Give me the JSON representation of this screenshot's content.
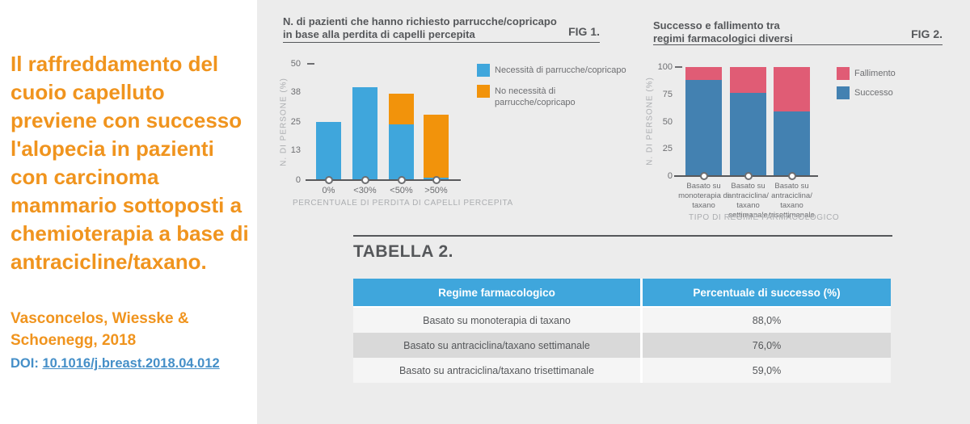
{
  "palette": {
    "background_gray": "#ECECEC",
    "panel_white": "#FFFFFF",
    "headline_orange": "#F0941E",
    "doi_blue": "#458FC8",
    "title_gray": "#55575A",
    "tick_gray": "#6D6E71",
    "caption_gray": "#ABADB0",
    "fig1_blue": "#3FA6DC",
    "fig1_orange": "#F2930B",
    "fig2_blue": "#4381B1",
    "fig2_pink": "#E05C75",
    "table_row_light": "#F5F5F5",
    "table_row_gray": "#D9D9D9"
  },
  "left_panel": {
    "headline_lines": [
      "Il raffreddamento del",
      "cuoio capelluto",
      "previene con successo",
      "l'alopecia in pazienti",
      "con carcinoma",
      "mammario sottoposti a",
      "chemioterapia a base di",
      "antracicline/taxano."
    ],
    "citation_line1": "Vasconcelos, Wiesske &",
    "citation_line2": "Schoenegg, 2018",
    "doi_label": "DOI:",
    "doi_link": "10.1016/j.breast.2018.04.012"
  },
  "chart_data": [
    {
      "type": "bar",
      "stacked": true,
      "fig_label": "FIG 1.",
      "title": "N. di pazienti che hanno richiesto parrucche/copricapo in base alla perdita di capelli percepita",
      "title_lines": [
        "N. di pazienti che hanno richiesto parrucche/copricapo",
        "in base alla perdita di capelli percepita"
      ],
      "categories": [
        "0%",
        "<30%",
        "<50%",
        ">50%"
      ],
      "series": [
        {
          "name": "Necessità di parrucche/copricapo",
          "color": "#3FA6DC",
          "values": [
            25,
            40,
            24,
            1
          ]
        },
        {
          "name": "No necessità di parrucche/copricapo",
          "color": "#F2930B",
          "values": [
            0,
            0,
            13,
            27
          ]
        }
      ],
      "legend": [
        {
          "label": "Necessità di parrucche/copricapo",
          "color": "#3FA6DC"
        },
        {
          "label": "No necessità di\nparrucche/copricapo",
          "color": "#F2930B"
        }
      ],
      "xlabel": "PERCENTUALE DI PERDITA DI CAPELLI PERCEPITA",
      "ylabel": "N. DI PERSONE (%)",
      "yticks": [
        0,
        13,
        25,
        38,
        50
      ],
      "ylim": [
        0,
        50
      ],
      "grid": false,
      "legend_position": "right"
    },
    {
      "type": "bar",
      "stacked": true,
      "fig_label": "FIG 2.",
      "title": "Successo e fallimento tra regimi farmacologici diversi",
      "title_lines": [
        "Successo e fallimento tra",
        "regimi farmacologici diversi"
      ],
      "categories": [
        "Basato su\nmonoterapia di\ntaxano",
        "Basato su\nantraciclina/\ntaxano\nsettimanale",
        "Basato su\nantraciclina/\ntaxano\ntrisettimanale"
      ],
      "series": [
        {
          "name": "Successo",
          "color": "#4381B1",
          "values": [
            88,
            76,
            59
          ]
        },
        {
          "name": "Fallimento",
          "color": "#E05C75",
          "values": [
            12,
            24,
            41
          ]
        }
      ],
      "legend": [
        {
          "label": "Fallimento",
          "color": "#E05C75"
        },
        {
          "label": "Successo",
          "color": "#4381B1"
        }
      ],
      "xlabel": "TIPO DI REGIME FARMACOLOGICO",
      "ylabel": "N. DI PERSONE (%)",
      "yticks": [
        0,
        25,
        50,
        75,
        100
      ],
      "ylim": [
        0,
        100
      ],
      "grid": false,
      "legend_position": "right"
    }
  ],
  "table": {
    "heading": "TABELLA 2.",
    "header_bg": "#3FA6DC",
    "columns": [
      "Regime farmacologico",
      "Percentuale di successo (%)"
    ],
    "rows": [
      [
        "Basato su monoterapia di taxano",
        "88,0%"
      ],
      [
        "Basato su antraciclina/taxano settimanale",
        "76,0%"
      ],
      [
        "Basato su antraciclina/taxano trisettimanale",
        "59,0%"
      ]
    ]
  }
}
